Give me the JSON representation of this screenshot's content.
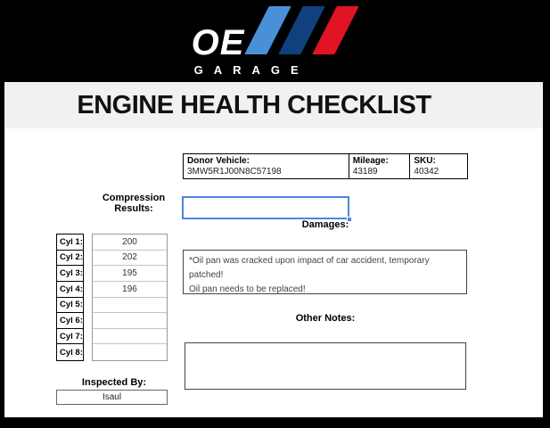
{
  "logo": {
    "brand": "OE",
    "sub_brand": "GARAGE",
    "stripe_colors": {
      "light_blue": "#4a90d9",
      "dark_blue": "#11407f",
      "red": "#e01423"
    }
  },
  "title": "ENGINE HEALTH CHECKLIST",
  "donor": {
    "vehicle_label": "Donor Vehicle:",
    "vehicle_value": "3MW5R1J00N8C57198",
    "mileage_label": "Mileage:",
    "mileage_value": "43189",
    "sku_label": "SKU:",
    "sku_value": "40342"
  },
  "compression": {
    "label": "Compression Results:",
    "selected_cell_value": "",
    "cylinders": [
      {
        "label": "Cyl 1:",
        "value": "200"
      },
      {
        "label": "Cyl 2:",
        "value": "202"
      },
      {
        "label": "Cyl 3:",
        "value": "195"
      },
      {
        "label": "Cyl 4:",
        "value": "196"
      },
      {
        "label": "Cyl 5:",
        "value": ""
      },
      {
        "label": "Cyl 6:",
        "value": ""
      },
      {
        "label": "Cyl 7:",
        "value": ""
      },
      {
        "label": "Cyl 8:",
        "value": ""
      }
    ]
  },
  "damages": {
    "label": "Damages:",
    "line1": "*Oil pan was cracked upon impact of car accident, temporary patched!",
    "line2": "Oil pan needs to be replaced!"
  },
  "other_notes": {
    "label": "Other Notes:",
    "value": ""
  },
  "inspected_by": {
    "label": "Inspected By:",
    "value": "Isaul"
  },
  "colors": {
    "selection_blue": "#4a86e8",
    "title_band_gray": "#f1f1f1",
    "frame_black": "#000000"
  }
}
